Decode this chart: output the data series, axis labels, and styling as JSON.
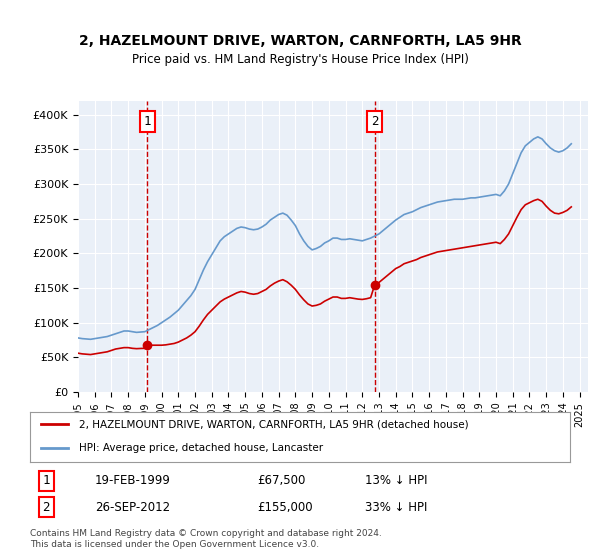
{
  "title": "2, HAZELMOUNT DRIVE, WARTON, CARNFORTH, LA5 9HR",
  "subtitle": "Price paid vs. HM Land Registry's House Price Index (HPI)",
  "ylim": [
    0,
    420000
  ],
  "yticks": [
    0,
    50000,
    100000,
    150000,
    200000,
    250000,
    300000,
    350000,
    400000
  ],
  "xlim_start": 1995.0,
  "xlim_end": 2025.5,
  "sale1_x": 1999.13,
  "sale1_y": 67500,
  "sale1_label": "1",
  "sale1_date": "19-FEB-1999",
  "sale1_price": "£67,500",
  "sale1_hpi": "13% ↓ HPI",
  "sale2_x": 2012.74,
  "sale2_y": 155000,
  "sale2_label": "2",
  "sale2_date": "26-SEP-2012",
  "sale2_price": "£155,000",
  "sale2_hpi": "33% ↓ HPI",
  "red_line_color": "#cc0000",
  "blue_line_color": "#6699cc",
  "background_color": "#eaf0f8",
  "grid_color": "#ffffff",
  "legend_label_red": "2, HAZELMOUNT DRIVE, WARTON, CARNFORTH, LA5 9HR (detached house)",
  "legend_label_blue": "HPI: Average price, detached house, Lancaster",
  "footnote": "Contains HM Land Registry data © Crown copyright and database right 2024.\nThis data is licensed under the Open Government Licence v3.0.",
  "hpi_data_x": [
    1995.0,
    1995.25,
    1995.5,
    1995.75,
    1996.0,
    1996.25,
    1996.5,
    1996.75,
    1997.0,
    1997.25,
    1997.5,
    1997.75,
    1998.0,
    1998.25,
    1998.5,
    1998.75,
    1999.0,
    1999.25,
    1999.5,
    1999.75,
    2000.0,
    2000.25,
    2000.5,
    2000.75,
    2001.0,
    2001.25,
    2001.5,
    2001.75,
    2002.0,
    2002.25,
    2002.5,
    2002.75,
    2003.0,
    2003.25,
    2003.5,
    2003.75,
    2004.0,
    2004.25,
    2004.5,
    2004.75,
    2005.0,
    2005.25,
    2005.5,
    2005.75,
    2006.0,
    2006.25,
    2006.5,
    2006.75,
    2007.0,
    2007.25,
    2007.5,
    2007.75,
    2008.0,
    2008.25,
    2008.5,
    2008.75,
    2009.0,
    2009.25,
    2009.5,
    2009.75,
    2010.0,
    2010.25,
    2010.5,
    2010.75,
    2011.0,
    2011.25,
    2011.5,
    2011.75,
    2012.0,
    2012.25,
    2012.5,
    2012.75,
    2013.0,
    2013.25,
    2013.5,
    2013.75,
    2014.0,
    2014.25,
    2014.5,
    2014.75,
    2015.0,
    2015.25,
    2015.5,
    2015.75,
    2016.0,
    2016.25,
    2016.5,
    2016.75,
    2017.0,
    2017.25,
    2017.5,
    2017.75,
    2018.0,
    2018.25,
    2018.5,
    2018.75,
    2019.0,
    2019.25,
    2019.5,
    2019.75,
    2020.0,
    2020.25,
    2020.5,
    2020.75,
    2021.0,
    2021.25,
    2021.5,
    2021.75,
    2022.0,
    2022.25,
    2022.5,
    2022.75,
    2023.0,
    2023.25,
    2023.5,
    2023.75,
    2024.0,
    2024.25,
    2024.5
  ],
  "hpi_data_y": [
    78000,
    77000,
    76500,
    76000,
    77000,
    78000,
    79000,
    80000,
    82000,
    84000,
    86000,
    88000,
    88000,
    87000,
    86000,
    86500,
    87000,
    90000,
    93000,
    96000,
    100000,
    104000,
    108000,
    113000,
    118000,
    125000,
    132000,
    139000,
    148000,
    162000,
    176000,
    188000,
    198000,
    208000,
    218000,
    224000,
    228000,
    232000,
    236000,
    238000,
    237000,
    235000,
    234000,
    235000,
    238000,
    242000,
    248000,
    252000,
    256000,
    258000,
    255000,
    248000,
    240000,
    228000,
    218000,
    210000,
    205000,
    207000,
    210000,
    215000,
    218000,
    222000,
    222000,
    220000,
    220000,
    221000,
    220000,
    219000,
    218000,
    220000,
    222000,
    225000,
    228000,
    233000,
    238000,
    243000,
    248000,
    252000,
    256000,
    258000,
    260000,
    263000,
    266000,
    268000,
    270000,
    272000,
    274000,
    275000,
    276000,
    277000,
    278000,
    278000,
    278000,
    279000,
    280000,
    280000,
    281000,
    282000,
    283000,
    284000,
    285000,
    283000,
    290000,
    300000,
    315000,
    330000,
    345000,
    355000,
    360000,
    365000,
    368000,
    365000,
    358000,
    352000,
    348000,
    346000,
    348000,
    352000,
    358000
  ],
  "red_data_x": [
    1995.0,
    1995.25,
    1995.5,
    1995.75,
    1996.0,
    1996.25,
    1996.5,
    1996.75,
    1997.0,
    1997.25,
    1997.5,
    1997.75,
    1998.0,
    1998.25,
    1998.5,
    1998.75,
    1999.0,
    1999.25,
    1999.5,
    1999.75,
    2000.0,
    2000.25,
    2000.5,
    2000.75,
    2001.0,
    2001.25,
    2001.5,
    2001.75,
    2002.0,
    2002.25,
    2002.5,
    2002.75,
    2003.0,
    2003.25,
    2003.5,
    2003.75,
    2004.0,
    2004.25,
    2004.5,
    2004.75,
    2005.0,
    2005.25,
    2005.5,
    2005.75,
    2006.0,
    2006.25,
    2006.5,
    2006.75,
    2007.0,
    2007.25,
    2007.5,
    2007.75,
    2008.0,
    2008.25,
    2008.5,
    2008.75,
    2009.0,
    2009.25,
    2009.5,
    2009.75,
    2010.0,
    2010.25,
    2010.5,
    2010.75,
    2011.0,
    2011.25,
    2011.5,
    2011.75,
    2012.0,
    2012.25,
    2012.5,
    2012.75,
    2013.0,
    2013.25,
    2013.5,
    2013.75,
    2014.0,
    2014.25,
    2014.5,
    2014.75,
    2015.0,
    2015.25,
    2015.5,
    2015.75,
    2016.0,
    2016.25,
    2016.5,
    2016.75,
    2017.0,
    2017.25,
    2017.5,
    2017.75,
    2018.0,
    2018.25,
    2018.5,
    2018.75,
    2019.0,
    2019.25,
    2019.5,
    2019.75,
    2020.0,
    2020.25,
    2020.5,
    2020.75,
    2021.0,
    2021.25,
    2021.5,
    2021.75,
    2022.0,
    2022.25,
    2022.5,
    2022.75,
    2023.0,
    2023.25,
    2023.5,
    2023.75,
    2024.0,
    2024.25,
    2024.5
  ],
  "red_data_y": [
    56000,
    55000,
    54500,
    54000,
    55000,
    56000,
    57000,
    58000,
    60000,
    62000,
    63000,
    64000,
    64000,
    63000,
    62500,
    62800,
    63000,
    67500,
    67500,
    67500,
    67500,
    68000,
    69000,
    70000,
    72000,
    75000,
    78000,
    82000,
    87000,
    95000,
    104000,
    112000,
    118000,
    124000,
    130000,
    134000,
    137000,
    140000,
    143000,
    145000,
    144000,
    142000,
    141000,
    142000,
    145000,
    148000,
    153000,
    157000,
    160000,
    162000,
    159000,
    154000,
    148000,
    140000,
    133000,
    127000,
    124000,
    125000,
    127000,
    131000,
    134000,
    137000,
    137000,
    135000,
    135000,
    136000,
    135000,
    134000,
    133500,
    134500,
    136000,
    155000,
    158000,
    163000,
    168000,
    173000,
    178000,
    181000,
    185000,
    187000,
    189000,
    191000,
    194000,
    196000,
    198000,
    200000,
    202000,
    203000,
    204000,
    205000,
    206000,
    207000,
    208000,
    209000,
    210000,
    211000,
    212000,
    213000,
    214000,
    215000,
    216000,
    214000,
    220000,
    228000,
    240000,
    252000,
    263000,
    270000,
    273000,
    276000,
    278000,
    275000,
    268000,
    262000,
    258000,
    257000,
    259000,
    262000,
    267000
  ]
}
